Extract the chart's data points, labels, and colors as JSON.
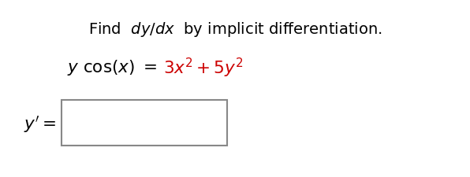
{
  "background_color": "#ffffff",
  "title_fontsize": 14,
  "eq_fontsize": 15.5,
  "answer_fontsize": 15.5,
  "red_color": "#cc0000"
}
